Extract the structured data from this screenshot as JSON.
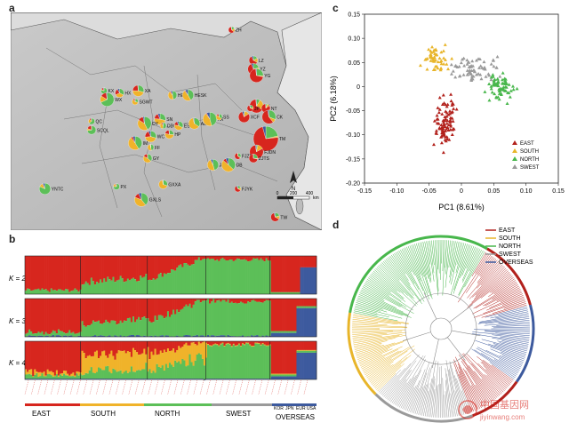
{
  "panels": {
    "a": "a",
    "b": "b",
    "c": "c",
    "d": "d"
  },
  "map": {
    "scale_label": "km",
    "scale_ticks": [
      "0",
      "200",
      "400"
    ],
    "sites": [
      {
        "code": "ZH",
        "lx": 0.71,
        "ly": 0.08
      },
      {
        "code": "LZ",
        "lx": 0.78,
        "ly": 0.22
      },
      {
        "code": "YZ",
        "lx": 0.78,
        "ly": 0.26
      },
      {
        "code": "YG",
        "lx": 0.79,
        "ly": 0.29
      },
      {
        "code": "KX",
        "lx": 0.3,
        "ly": 0.36
      },
      {
        "code": "HX",
        "lx": 0.35,
        "ly": 0.37
      },
      {
        "code": "XA",
        "lx": 0.41,
        "ly": 0.36
      },
      {
        "code": "WX",
        "lx": 0.31,
        "ly": 0.4
      },
      {
        "code": "SGWT",
        "lx": 0.4,
        "ly": 0.41
      },
      {
        "code": "HEXB",
        "lx": 0.52,
        "ly": 0.38
      },
      {
        "code": "HESK",
        "lx": 0.57,
        "ly": 0.38
      },
      {
        "code": "TX",
        "lx": 0.79,
        "ly": 0.43
      },
      {
        "code": "JP",
        "lx": 0.77,
        "ly": 0.44
      },
      {
        "code": "NT",
        "lx": 0.82,
        "ly": 0.44
      },
      {
        "code": "XCF",
        "lx": 0.75,
        "ly": 0.48
      },
      {
        "code": "CK",
        "lx": 0.83,
        "ly": 0.48
      },
      {
        "code": "QC",
        "lx": 0.26,
        "ly": 0.5
      },
      {
        "code": "SCQL",
        "lx": 0.26,
        "ly": 0.54
      },
      {
        "code": "SN",
        "lx": 0.48,
        "ly": 0.49
      },
      {
        "code": "DY",
        "lx": 0.43,
        "ly": 0.51
      },
      {
        "code": "DDSZ",
        "lx": 0.49,
        "ly": 0.52
      },
      {
        "code": "ES",
        "lx": 0.54,
        "ly": 0.52
      },
      {
        "code": "AL",
        "lx": 0.59,
        "ly": 0.51
      },
      {
        "code": "XX",
        "lx": 0.64,
        "ly": 0.49
      },
      {
        "code": "SS",
        "lx": 0.67,
        "ly": 0.48
      },
      {
        "code": "HP",
        "lx": 0.51,
        "ly": 0.56
      },
      {
        "code": "WC",
        "lx": 0.45,
        "ly": 0.57
      },
      {
        "code": "IM",
        "lx": 0.4,
        "ly": 0.6
      },
      {
        "code": "FF",
        "lx": 0.45,
        "ly": 0.62
      },
      {
        "code": "GY",
        "lx": 0.44,
        "ly": 0.67
      },
      {
        "code": "TM",
        "lx": 0.82,
        "ly": 0.58
      },
      {
        "code": "FJDN",
        "lx": 0.79,
        "ly": 0.64
      },
      {
        "code": "FJZB",
        "lx": 0.73,
        "ly": 0.66
      },
      {
        "code": "ZJTS",
        "lx": 0.78,
        "ly": 0.67
      },
      {
        "code": "JA",
        "lx": 0.65,
        "ly": 0.7
      },
      {
        "code": "DB",
        "lx": 0.7,
        "ly": 0.7
      },
      {
        "code": "PX",
        "lx": 0.34,
        "ly": 0.8
      },
      {
        "code": "GXXA",
        "lx": 0.49,
        "ly": 0.79
      },
      {
        "code": "YNTC",
        "lx": 0.11,
        "ly": 0.81
      },
      {
        "code": "GXLS",
        "lx": 0.42,
        "ly": 0.86
      },
      {
        "code": "FJYK",
        "lx": 0.73,
        "ly": 0.81
      },
      {
        "code": "TW",
        "lx": 0.85,
        "ly": 0.94
      }
    ]
  },
  "admixture": {
    "k_labels": [
      "K = 2",
      "K = 3",
      "K = 4"
    ],
    "groups": [
      "EAST",
      "SOUTH",
      "NORTH",
      "SWEST",
      "OVERSEAS"
    ],
    "overseas_sub": [
      "KOR",
      "JPN",
      "EUR",
      "USA"
    ],
    "colors": {
      "red": "#d7261e",
      "green": "#5cbf58",
      "blue": "#3d5a9e",
      "yellow": "#f0b32a"
    }
  },
  "pca": {
    "xlabel": "PC1 (8.61%)",
    "ylabel": "PC2 (6.18%)",
    "xticks": [
      "-0.15",
      "-0.10",
      "-0.05",
      "0",
      "0.05",
      "0.10",
      "0.15"
    ],
    "yticks": [
      "0.15",
      "0.10",
      "0.05",
      "0",
      "-0.05",
      "-0.10",
      "-0.15",
      "-0.20"
    ],
    "legend": [
      "EAST",
      "SOUTH",
      "NORTH",
      "SWEST"
    ]
  },
  "tree": {
    "legend": [
      "EAST",
      "SOUTH",
      "NORTH",
      "SWEST",
      "OVERSEAS"
    ]
  },
  "chart_data": [
    {
      "type": "map",
      "id": "a"
    },
    {
      "type": "bar",
      "id": "b",
      "rows": [
        "K = 2",
        "K = 3",
        "K = 4"
      ],
      "groups": [
        "EAST",
        "SOUTH",
        "NORTH",
        "SWEST",
        "OVERSEAS"
      ],
      "ylim": [
        0,
        1
      ]
    },
    {
      "type": "scatter",
      "id": "c",
      "xlabel": "PC1 (8.61%)",
      "ylabel": "PC2 (6.18%)",
      "xlim": [
        -0.15,
        0.15
      ],
      "ylim": [
        -0.2,
        0.15
      ],
      "series": [
        {
          "name": "EAST",
          "color": "#b2211c",
          "marker": "triangle",
          "cx": -0.025,
          "cy": -0.08,
          "sx": 0.012,
          "sy": 0.035,
          "n": 95
        },
        {
          "name": "SOUTH",
          "color": "#e8b52a",
          "marker": "triangle",
          "cx": -0.038,
          "cy": 0.055,
          "sx": 0.012,
          "sy": 0.022,
          "n": 55
        },
        {
          "name": "NORTH",
          "color": "#48b74c",
          "marker": "triangle",
          "cx": 0.06,
          "cy": 0.0,
          "sx": 0.015,
          "sy": 0.02,
          "n": 70
        },
        {
          "name": "SWEST",
          "color": "#9a9a9a",
          "marker": "triangle",
          "cx": 0.02,
          "cy": 0.035,
          "sx": 0.025,
          "sy": 0.018,
          "n": 70
        }
      ]
    },
    {
      "type": "tree",
      "id": "d"
    }
  ]
}
